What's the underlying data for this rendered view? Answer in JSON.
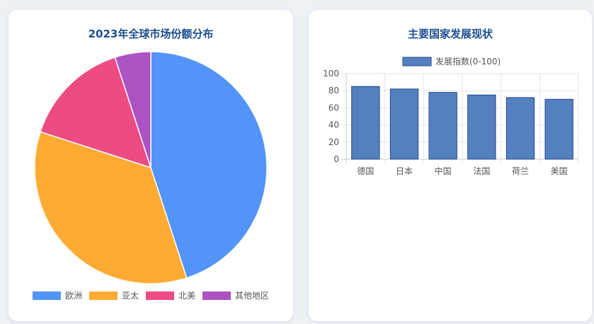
{
  "colors": {
    "title": "#1c4e8f",
    "pie": [
      "#5294f7",
      "#ffab33",
      "#ec4b84",
      "#ad52c3"
    ],
    "bar_fill": "#5580c0",
    "bar_stroke": "#23498b"
  },
  "left_card": {
    "title": "2023年全球市场份额分布"
  },
  "right_card": {
    "title": "主要国家发展现状"
  },
  "chart_data": [
    {
      "type": "pie",
      "title": "2023年全球市场份额分布",
      "categories": [
        "欧洲",
        "亚太",
        "北美",
        "其他地区"
      ],
      "values": [
        45,
        35,
        15,
        5
      ],
      "legend": "bottom"
    },
    {
      "type": "bar",
      "title": "主要国家发展现状",
      "categories": [
        "德国",
        "日本",
        "中国",
        "法国",
        "荷兰",
        "美国"
      ],
      "series": [
        {
          "name": "发展指数(0-100)",
          "values": [
            85,
            82,
            78,
            75,
            72,
            70
          ]
        }
      ],
      "ylim": [
        0,
        100
      ],
      "yticks": [
        "0",
        "20",
        "40",
        "60",
        "80",
        "100"
      ],
      "grid": true,
      "legend": "top"
    }
  ]
}
